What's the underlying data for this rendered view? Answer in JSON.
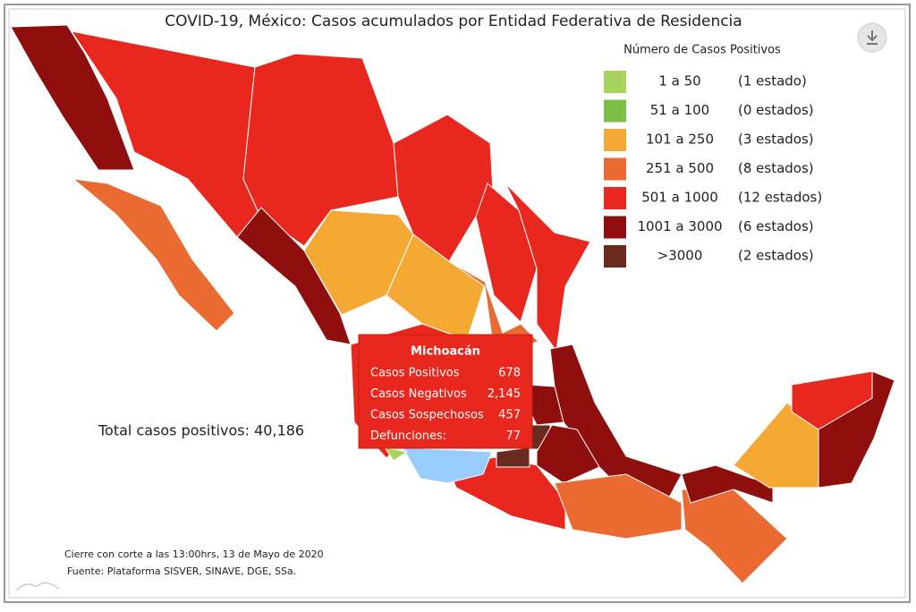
{
  "title": "COVID-19, México: Casos acumulados por Entidad Federativa de Residencia",
  "legend": {
    "title": "Número de Casos Positivos",
    "items": [
      {
        "range": "1 a 50",
        "count": "(1 estado)",
        "color": "#a9d35f"
      },
      {
        "range": "51 a 100",
        "count": "(0 estados)",
        "color": "#7bbf45"
      },
      {
        "range": "101 a 250",
        "count": "(3 estados)",
        "color": "#f4a935"
      },
      {
        "range": "251 a 500",
        "count": "(8 estados)",
        "color": "#ea6a32"
      },
      {
        "range": "501 a 1000",
        "count": "(12 estados)",
        "color": "#e8281f"
      },
      {
        "range": "1001 a 3000",
        "count": "(6 estados)",
        "color": "#8e0f0d"
      },
      {
        "range": ">3000",
        "count": "(2 estados)",
        "color": "#6b2a20"
      }
    ]
  },
  "tooltip": {
    "state": "Michoacán",
    "rows": [
      {
        "label": "Casos Positivos",
        "value": "678"
      },
      {
        "label": "Casos Negativos",
        "value": "2,145"
      },
      {
        "label": "Casos Sospechosos",
        "value": "457"
      },
      {
        "label": "Defunciones:",
        "value": "77"
      }
    ]
  },
  "total": "Total casos positivos: 40,186",
  "footer": [
    "Cierre con corte a las 13:00hrs, 13 de Mayo de 2020",
    "Fuente: Plataforma SISVER, SINAVE, DGE, SSa."
  ]
}
